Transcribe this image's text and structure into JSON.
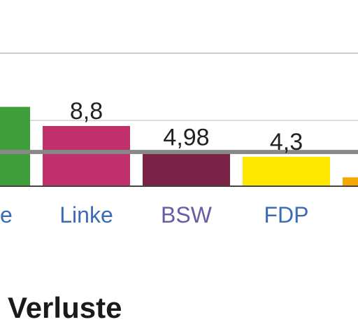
{
  "chart_data": {
    "type": "bar",
    "categories": [
      "Grüne",
      "Linke",
      "BSW",
      "FDP",
      ""
    ],
    "values": [
      11.6,
      8.8,
      4.98,
      4.3,
      1.3
    ],
    "value_labels": [
      "",
      "8,8",
      "4,98",
      "4,3",
      ""
    ],
    "category_labels_visible": [
      "e",
      "Linke",
      "BSW",
      "FDP",
      ""
    ],
    "colors": [
      "#3d9e3a",
      "#c0306b",
      "#7b2347",
      "#ffe800",
      "#f5a800"
    ],
    "label_colors": [
      "#3d6cb7",
      "#3d6cb7",
      "#6b5aa6",
      "#3d6cb7",
      "#3d6cb7"
    ],
    "threshold": 5,
    "threshold_color": "#888888",
    "ylim": [
      0,
      15
    ],
    "grid": true
  },
  "section": {
    "heading": "Verluste"
  }
}
